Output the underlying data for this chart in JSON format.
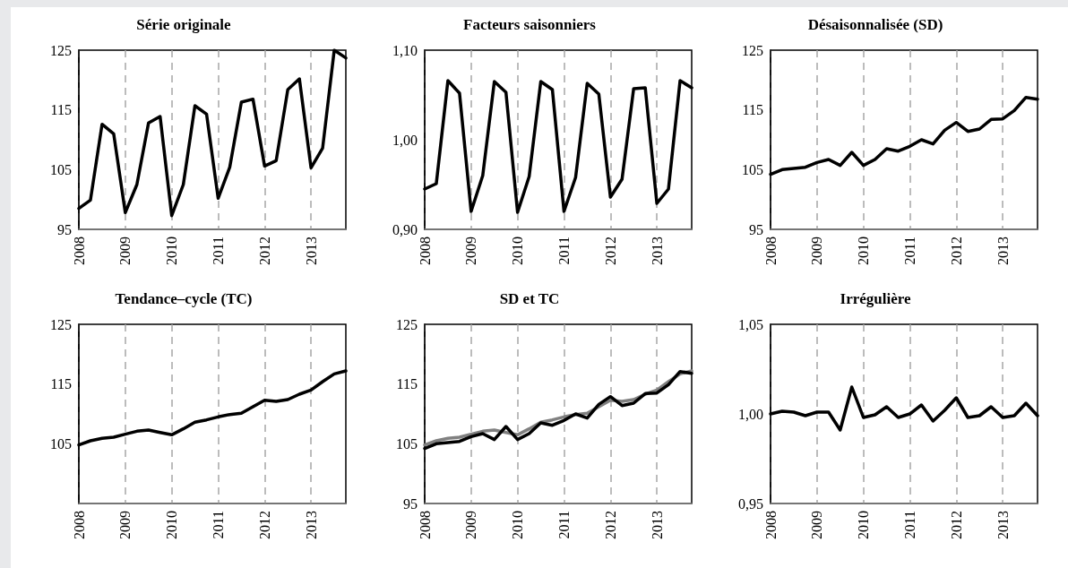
{
  "chart_data": [
    {
      "type": "line",
      "title": "Série originale",
      "x": [
        2008,
        2008.25,
        2008.5,
        2008.75,
        2009,
        2009.25,
        2009.5,
        2009.75,
        2010,
        2010.25,
        2010.5,
        2010.75,
        2011,
        2011.25,
        2011.5,
        2011.75,
        2012,
        2012.25,
        2012.5,
        2012.75,
        2013,
        2013.25,
        2013.5,
        2013.75
      ],
      "xlim": [
        2008,
        2013.75
      ],
      "xticks": [
        2008,
        2009,
        2010,
        2011,
        2012,
        2013
      ],
      "ylim": [
        95,
        125
      ],
      "yticks": [
        95,
        105,
        115,
        125
      ],
      "grid": "x",
      "marker": "none",
      "line_style": "solid",
      "series": [
        {
          "color": "#000000",
          "values": [
            98.5,
            99.9,
            112.6,
            111.0,
            97.8,
            102.5,
            112.8,
            113.9,
            97.3,
            102.5,
            115.7,
            114.3,
            100.2,
            105.4,
            116.3,
            116.8,
            105.6,
            106.5,
            118.4,
            120.2,
            105.3,
            108.6,
            125.0,
            123.7
          ]
        }
      ]
    },
    {
      "type": "line",
      "title": "Facteurs saisonniers",
      "x": [
        2008,
        2008.25,
        2008.5,
        2008.75,
        2009,
        2009.25,
        2009.5,
        2009.75,
        2010,
        2010.25,
        2010.5,
        2010.75,
        2011,
        2011.25,
        2011.5,
        2011.75,
        2012,
        2012.25,
        2012.5,
        2012.75,
        2013,
        2013.25,
        2013.5,
        2013.75
      ],
      "xlim": [
        2008,
        2013.75
      ],
      "xticks": [
        2008,
        2009,
        2010,
        2011,
        2012,
        2013
      ],
      "ylim": [
        0.9,
        1.1
      ],
      "yticks": [
        {
          "value": 0.9,
          "label": "0,90"
        },
        {
          "value": 1.0,
          "label": "1,00"
        },
        {
          "value": 1.1,
          "label": "1,10"
        }
      ],
      "grid": "x",
      "marker": "none",
      "line_style": "solid",
      "series": [
        {
          "color": "#000000",
          "values": [
            0.945,
            0.951,
            1.066,
            1.052,
            0.92,
            0.96,
            1.065,
            1.053,
            0.919,
            0.959,
            1.065,
            1.056,
            0.92,
            0.958,
            1.063,
            1.051,
            0.936,
            0.956,
            1.057,
            1.058,
            0.929,
            0.945,
            1.066,
            1.058
          ]
        }
      ]
    },
    {
      "type": "line",
      "title": "Désaisonnalisée (SD)",
      "x": [
        2008,
        2008.25,
        2008.5,
        2008.75,
        2009,
        2009.25,
        2009.5,
        2009.75,
        2010,
        2010.25,
        2010.5,
        2010.75,
        2011,
        2011.25,
        2011.5,
        2011.75,
        2012,
        2012.25,
        2012.5,
        2012.75,
        2013,
        2013.25,
        2013.5,
        2013.75
      ],
      "xlim": [
        2008,
        2013.75
      ],
      "xticks": [
        2008,
        2009,
        2010,
        2011,
        2012,
        2013
      ],
      "ylim": [
        95,
        125
      ],
      "yticks": [
        95,
        105,
        115,
        125
      ],
      "grid": "x",
      "marker": "none",
      "line_style": "solid",
      "series": [
        {
          "color": "#000000",
          "values": [
            104.2,
            105.0,
            105.2,
            105.4,
            106.2,
            106.7,
            105.7,
            107.9,
            105.7,
            106.7,
            108.5,
            108.1,
            108.9,
            110.0,
            109.3,
            111.6,
            112.9,
            111.4,
            111.8,
            113.4,
            113.5,
            114.9,
            117.1,
            116.8
          ]
        }
      ]
    },
    {
      "type": "line",
      "title": "Tendance–cycle (TC)",
      "x": [
        2008,
        2008.25,
        2008.5,
        2008.75,
        2009,
        2009.25,
        2009.5,
        2009.75,
        2010,
        2010.25,
        2010.5,
        2010.75,
        2011,
        2011.25,
        2011.5,
        2011.75,
        2012,
        2012.25,
        2012.5,
        2012.75,
        2013,
        2013.25,
        2013.5,
        2013.75
      ],
      "xlim": [
        2008,
        2013.75
      ],
      "xticks": [
        2008,
        2009,
        2010,
        2011,
        2012,
        2013
      ],
      "ylim": [
        95,
        125
      ],
      "yticks": [
        105,
        115,
        125
      ],
      "grid": "x",
      "marker": "none",
      "line_style": "solid",
      "series": [
        {
          "color": "#000000",
          "values": [
            104.8,
            105.5,
            105.9,
            106.1,
            106.6,
            107.1,
            107.3,
            106.9,
            106.5,
            107.5,
            108.6,
            109.0,
            109.5,
            109.9,
            110.1,
            111.2,
            112.3,
            112.1,
            112.4,
            113.3,
            114.0,
            115.4,
            116.7,
            117.2
          ]
        }
      ]
    },
    {
      "type": "line",
      "title": "SD et TC",
      "x": [
        2008,
        2008.25,
        2008.5,
        2008.75,
        2009,
        2009.25,
        2009.5,
        2009.75,
        2010,
        2010.25,
        2010.5,
        2010.75,
        2011,
        2011.25,
        2011.5,
        2011.75,
        2012,
        2012.25,
        2012.5,
        2012.75,
        2013,
        2013.25,
        2013.5,
        2013.75
      ],
      "xlim": [
        2008,
        2013.75
      ],
      "xticks": [
        2008,
        2009,
        2010,
        2011,
        2012,
        2013
      ],
      "ylim": [
        95,
        125
      ],
      "yticks": [
        95,
        105,
        115,
        125
      ],
      "grid": "x",
      "marker": "none",
      "line_style": "solid",
      "series": [
        {
          "color": "#808080",
          "values": [
            104.8,
            105.5,
            105.9,
            106.1,
            106.6,
            107.1,
            107.3,
            106.9,
            106.5,
            107.5,
            108.6,
            109.0,
            109.5,
            109.9,
            110.1,
            111.2,
            112.3,
            112.1,
            112.4,
            113.3,
            114.0,
            115.4,
            116.7,
            117.2
          ]
        },
        {
          "color": "#000000",
          "values": [
            104.2,
            105.0,
            105.2,
            105.4,
            106.2,
            106.7,
            105.7,
            107.9,
            105.7,
            106.7,
            108.5,
            108.1,
            108.9,
            110.0,
            109.3,
            111.6,
            112.9,
            111.4,
            111.8,
            113.4,
            113.5,
            114.9,
            117.1,
            116.8
          ]
        }
      ]
    },
    {
      "type": "line",
      "title": "Irrégulière",
      "x": [
        2008,
        2008.25,
        2008.5,
        2008.75,
        2009,
        2009.25,
        2009.5,
        2009.75,
        2010,
        2010.25,
        2010.5,
        2010.75,
        2011,
        2011.25,
        2011.5,
        2011.75,
        2012,
        2012.25,
        2012.5,
        2012.75,
        2013,
        2013.25,
        2013.5,
        2013.75
      ],
      "xlim": [
        2008,
        2013.75
      ],
      "xticks": [
        2008,
        2009,
        2010,
        2011,
        2012,
        2013
      ],
      "ylim": [
        0.95,
        1.05
      ],
      "yticks": [
        {
          "value": 0.95,
          "label": "0,95"
        },
        {
          "value": 1.0,
          "label": "1,00"
        },
        {
          "value": 1.05,
          "label": "1,05"
        }
      ],
      "grid": "x",
      "marker": "none",
      "line_style": "solid",
      "series": [
        {
          "color": "#000000",
          "values": [
            1.0,
            1.0015,
            1.001,
            0.999,
            1.001,
            1.001,
            0.991,
            1.015,
            0.998,
            0.9995,
            1.004,
            0.998,
            1.0,
            1.005,
            0.996,
            1.002,
            1.009,
            0.998,
            0.999,
            1.004,
            0.998,
            0.999,
            1.006,
            0.999
          ]
        }
      ]
    }
  ]
}
